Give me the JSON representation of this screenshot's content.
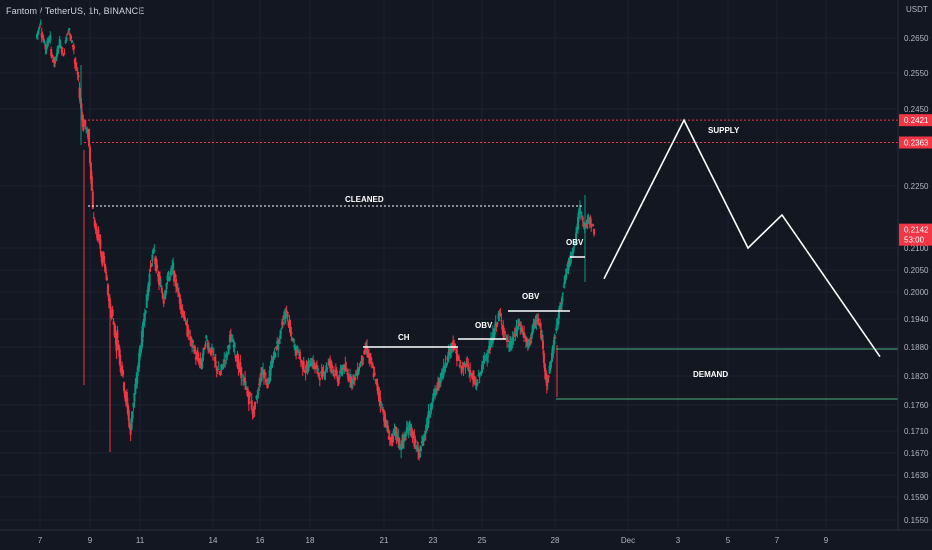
{
  "header": {
    "symbol": "Fantom / TetherUS, 1h, BINANCE"
  },
  "chart_data": {
    "type": "candlestick",
    "yaxis": {
      "unit_label": "USDT",
      "ticks": [
        "0.2650",
        "0.2550",
        "0.2450",
        "0.2250",
        "0.2100",
        "0.2050",
        "0.2000",
        "0.1940",
        "0.1880",
        "0.1820",
        "0.1760",
        "0.1710",
        "0.1670",
        "0.1630",
        "0.1590",
        "0.1550"
      ]
    },
    "xaxis": {
      "ticks": [
        "7",
        "9",
        "11",
        "14",
        "16",
        "18",
        "21",
        "23",
        "25",
        "28",
        "Dec",
        "3",
        "5",
        "7",
        "9"
      ]
    },
    "price_tags": [
      {
        "value": "0.2421",
        "color": "#f23645"
      },
      {
        "value": "0.2363",
        "color": "#f23645"
      },
      {
        "value": "0.2142",
        "sub": "53:00",
        "color": "#f23645"
      }
    ],
    "annotations": {
      "cleaned": "CLEANED",
      "ch": "CH",
      "obv1": "OBV",
      "obv2": "OBV",
      "obv3": "OBV",
      "supply": "SUPPLY",
      "demand": "DEMAND"
    },
    "candles_path": [
      [
        0.265,
        0.27
      ],
      [
        0.267,
        0.262
      ],
      [
        0.262,
        0.266
      ],
      [
        0.261,
        0.257
      ],
      [
        0.259,
        0.264
      ],
      [
        0.263,
        0.26
      ],
      [
        0.264,
        0.268
      ],
      [
        0.266,
        0.262
      ],
      [
        0.259,
        0.253
      ],
      [
        0.251,
        0.24
      ],
      [
        0.242,
        0.238
      ],
      [
        0.239,
        0.22
      ],
      [
        0.218,
        0.212
      ],
      [
        0.215,
        0.206
      ],
      [
        0.209,
        0.202
      ],
      [
        0.201,
        0.194
      ],
      [
        0.196,
        0.188
      ],
      [
        0.191,
        0.183
      ],
      [
        0.185,
        0.176
      ],
      [
        0.178,
        0.17
      ],
      [
        0.172,
        0.18
      ],
      [
        0.179,
        0.188
      ],
      [
        0.187,
        0.196
      ],
      [
        0.195,
        0.204
      ],
      [
        0.205,
        0.21
      ],
      [
        0.208,
        0.202
      ],
      [
        0.203,
        0.198
      ],
      [
        0.199,
        0.204
      ],
      [
        0.203,
        0.206
      ],
      [
        0.204,
        0.2
      ],
      [
        0.2,
        0.195
      ],
      [
        0.196,
        0.191
      ],
      [
        0.192,
        0.188
      ],
      [
        0.189,
        0.185
      ],
      [
        0.186,
        0.184
      ],
      [
        0.185,
        0.19
      ],
      [
        0.189,
        0.187
      ],
      [
        0.188,
        0.184
      ],
      [
        0.184,
        0.182
      ],
      [
        0.183,
        0.186
      ],
      [
        0.185,
        0.19
      ],
      [
        0.19,
        0.188
      ],
      [
        0.187,
        0.183
      ],
      [
        0.184,
        0.18
      ],
      [
        0.181,
        0.177
      ],
      [
        0.178,
        0.174
      ],
      [
        0.175,
        0.179
      ],
      [
        0.18,
        0.184
      ],
      [
        0.183,
        0.18
      ],
      [
        0.181,
        0.185
      ],
      [
        0.185,
        0.189
      ],
      [
        0.188,
        0.193
      ],
      [
        0.193,
        0.196
      ],
      [
        0.195,
        0.19
      ],
      [
        0.19,
        0.187
      ],
      [
        0.188,
        0.185
      ],
      [
        0.185,
        0.183
      ],
      [
        0.183,
        0.185
      ],
      [
        0.185,
        0.184
      ],
      [
        0.184,
        0.182
      ],
      [
        0.182,
        0.183
      ],
      [
        0.183,
        0.185
      ],
      [
        0.185,
        0.183
      ],
      [
        0.183,
        0.181
      ],
      [
        0.182,
        0.184
      ],
      [
        0.184,
        0.182
      ],
      [
        0.182,
        0.181
      ],
      [
        0.181,
        0.183
      ],
      [
        0.183,
        0.186
      ],
      [
        0.186,
        0.188
      ],
      [
        0.187,
        0.184
      ],
      [
        0.184,
        0.18
      ],
      [
        0.18,
        0.176
      ],
      [
        0.176,
        0.172
      ],
      [
        0.172,
        0.169
      ],
      [
        0.169,
        0.171
      ],
      [
        0.171,
        0.168
      ],
      [
        0.168,
        0.17
      ],
      [
        0.17,
        0.172
      ],
      [
        0.172,
        0.169
      ],
      [
        0.169,
        0.166
      ],
      [
        0.167,
        0.17
      ],
      [
        0.17,
        0.174
      ],
      [
        0.174,
        0.178
      ],
      [
        0.178,
        0.18
      ],
      [
        0.18,
        0.183
      ],
      [
        0.183,
        0.186
      ],
      [
        0.186,
        0.189
      ],
      [
        0.189,
        0.186
      ],
      [
        0.186,
        0.183
      ],
      [
        0.183,
        0.185
      ],
      [
        0.185,
        0.182
      ],
      [
        0.182,
        0.18
      ],
      [
        0.18,
        0.183
      ],
      [
        0.183,
        0.186
      ],
      [
        0.186,
        0.188
      ],
      [
        0.188,
        0.192
      ],
      [
        0.192,
        0.195
      ],
      [
        0.195,
        0.191
      ],
      [
        0.191,
        0.188
      ],
      [
        0.188,
        0.19
      ],
      [
        0.19,
        0.193
      ],
      [
        0.193,
        0.191
      ],
      [
        0.191,
        0.188
      ],
      [
        0.188,
        0.192
      ],
      [
        0.192,
        0.194
      ],
      [
        0.194,
        0.19
      ],
      [
        0.189,
        0.18
      ],
      [
        0.18,
        0.186
      ],
      [
        0.186,
        0.192
      ],
      [
        0.192,
        0.198
      ],
      [
        0.198,
        0.204
      ],
      [
        0.204,
        0.208
      ],
      [
        0.208,
        0.212
      ],
      [
        0.212,
        0.22
      ],
      [
        0.219,
        0.215
      ],
      [
        0.215,
        0.217
      ],
      [
        0.217,
        0.214
      ]
    ],
    "projection_path": [
      0.203,
      0.2421,
      0.21,
      0.218,
      0.186
    ]
  }
}
